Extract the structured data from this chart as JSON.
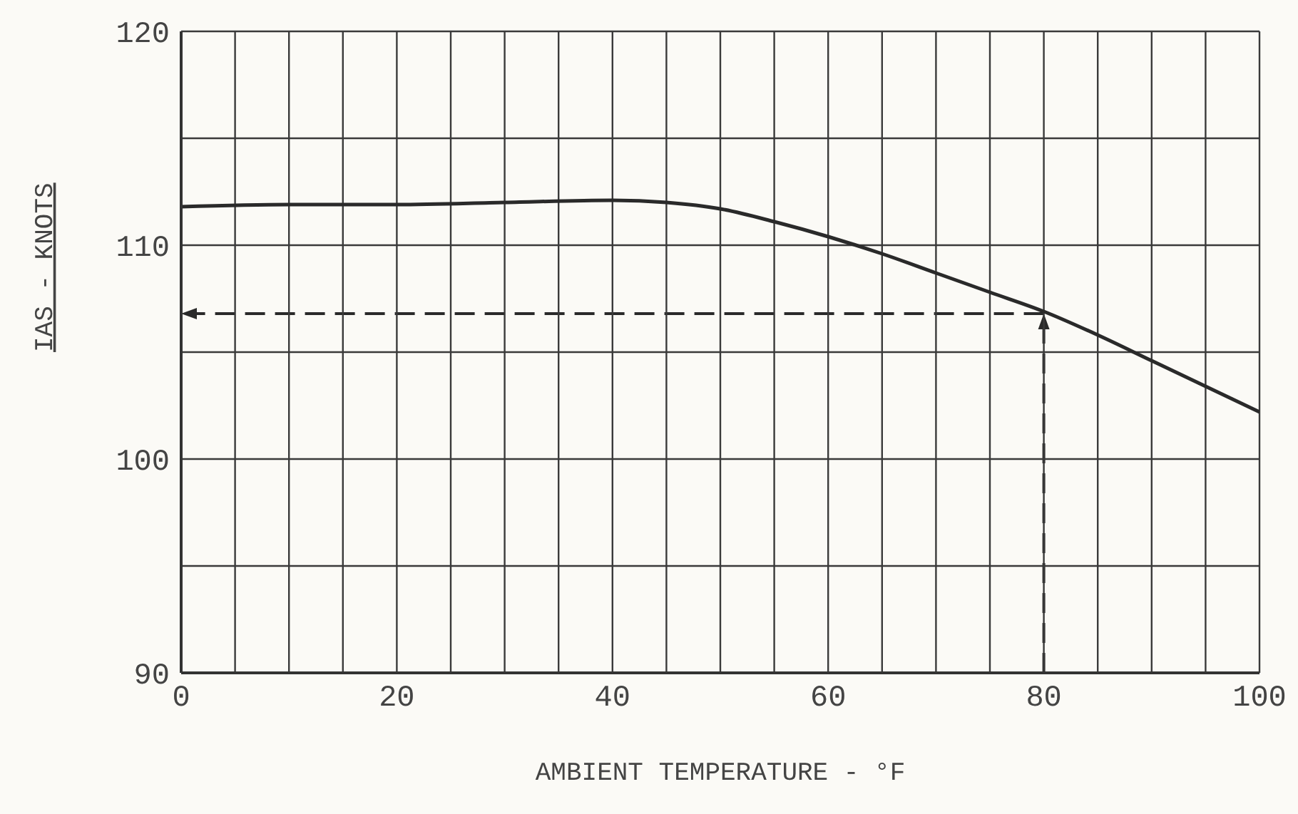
{
  "chart_data": {
    "type": "line",
    "xlabel": "AMBIENT TEMPERATURE - °F",
    "ylabel": "IAS - KNOTS",
    "xlim": [
      0,
      100
    ],
    "xticks": [
      0,
      {
        "value": 5,
        "label": null
      },
      {
        "value": 10,
        "label": null
      },
      {
        "value": 15,
        "label": null
      },
      20,
      {
        "value": 25,
        "label": null
      },
      {
        "value": 30,
        "label": null
      },
      {
        "value": 35,
        "label": null
      },
      40,
      {
        "value": 45,
        "label": null
      },
      {
        "value": 50,
        "label": null
      },
      {
        "value": 55,
        "label": null
      },
      60,
      {
        "value": 65,
        "label": null
      },
      {
        "value": 70,
        "label": null
      },
      {
        "value": 75,
        "label": null
      },
      80,
      {
        "value": 85,
        "label": null
      },
      {
        "value": 90,
        "label": null
      },
      {
        "value": 95,
        "label": null
      },
      100
    ],
    "ylim": [
      90,
      120
    ],
    "yticks": [
      90,
      {
        "value": 95,
        "label": null
      },
      100,
      {
        "value": 105,
        "label": null
      },
      110,
      {
        "value": 115,
        "label": null
      },
      120
    ],
    "grid": true,
    "marker": "none",
    "ref_lines": [
      {
        "axis": "x",
        "value": 80,
        "line_style": "dashed",
        "color": "#2a2a2a"
      },
      {
        "axis": "y",
        "value": 106.8,
        "line_style": "dashed",
        "color": "#2a2a2a"
      }
    ],
    "series": [
      {
        "color": "#2a2a2a",
        "x": [
          0,
          10,
          20,
          30,
          40,
          45,
          50,
          55,
          60,
          65,
          70,
          75,
          80,
          85,
          90,
          95,
          100
        ],
        "values": [
          111.8,
          111.9,
          111.9,
          112.0,
          112.1,
          112.0,
          111.7,
          111.1,
          110.4,
          109.6,
          108.7,
          107.8,
          106.9,
          105.8,
          104.6,
          103.4,
          102.2
        ],
        "line_style": "solid"
      }
    ]
  }
}
